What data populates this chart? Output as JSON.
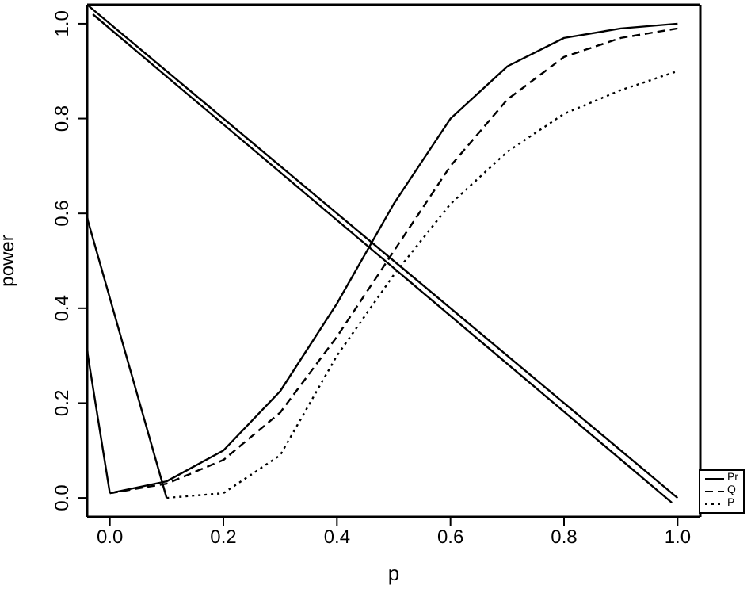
{
  "chart_data": {
    "type": "line",
    "xlabel": "p",
    "ylabel": "power",
    "xlim": [
      -0.04,
      1.04
    ],
    "ylim": [
      -0.04,
      1.04
    ],
    "xticks": [
      {
        "value": 0,
        "label": "0.0"
      },
      0.2,
      0.4,
      0.6,
      0.8,
      {
        "value": 1,
        "label": "1.0"
      }
    ],
    "yticks": [
      {
        "value": 0,
        "label": "0.0"
      },
      0.2,
      0.4,
      0.6,
      0.8,
      {
        "value": 1,
        "label": "1.0"
      }
    ],
    "legend": "bottom right",
    "marker": "none",
    "series": [
      {
        "name": "Pr",
        "color": "#000000",
        "line_style": "solid",
        "x": [
          0,
          0.1,
          0.2,
          0.3,
          0.4,
          0.5,
          0.6,
          0.7,
          0.8,
          0.9,
          1.0
        ],
        "values": [
          0.01,
          0.035,
          0.1,
          0.225,
          0.41,
          0.62,
          0.8,
          0.91,
          0.97,
          0.99,
          1.0
        ]
      },
      {
        "name": "Q",
        "color": "#000000",
        "line_style": "dashed",
        "x": [
          0,
          0.1,
          0.2,
          0.3,
          0.4,
          0.5,
          0.6,
          0.7,
          0.8,
          0.9,
          1.0
        ],
        "values": [
          0.01,
          0.03,
          0.08,
          0.18,
          0.34,
          0.52,
          0.7,
          0.84,
          0.93,
          0.97,
          0.99
        ]
      },
      {
        "name": "P",
        "color": "#000000",
        "line_style": "dotted",
        "x": [
          0.1,
          0.2,
          0.3,
          0.4,
          0.5,
          0.6,
          0.7,
          0.8,
          0.9,
          1.0
        ],
        "values": [
          0.0,
          0.01,
          0.09,
          0.3,
          0.47,
          0.62,
          0.73,
          0.81,
          0.86,
          0.9
        ]
      },
      {
        "color": "#000000",
        "line_style": "solid",
        "x": [
          -0.04,
          1.0
        ],
        "values": [
          1.04,
          0.0
        ]
      },
      {
        "color": "#000000",
        "line_style": "solid",
        "x": [
          -0.03,
          0.99
        ],
        "values": [
          1.02,
          -0.01
        ]
      },
      {
        "color": "#000000",
        "line_style": "solid",
        "x": [
          -0.04,
          0.1
        ],
        "values": [
          0.59,
          0.0
        ]
      },
      {
        "color": "#000000",
        "line_style": "solid",
        "x": [
          -0.04,
          0.0
        ],
        "values": [
          0.31,
          0.01
        ]
      }
    ]
  }
}
